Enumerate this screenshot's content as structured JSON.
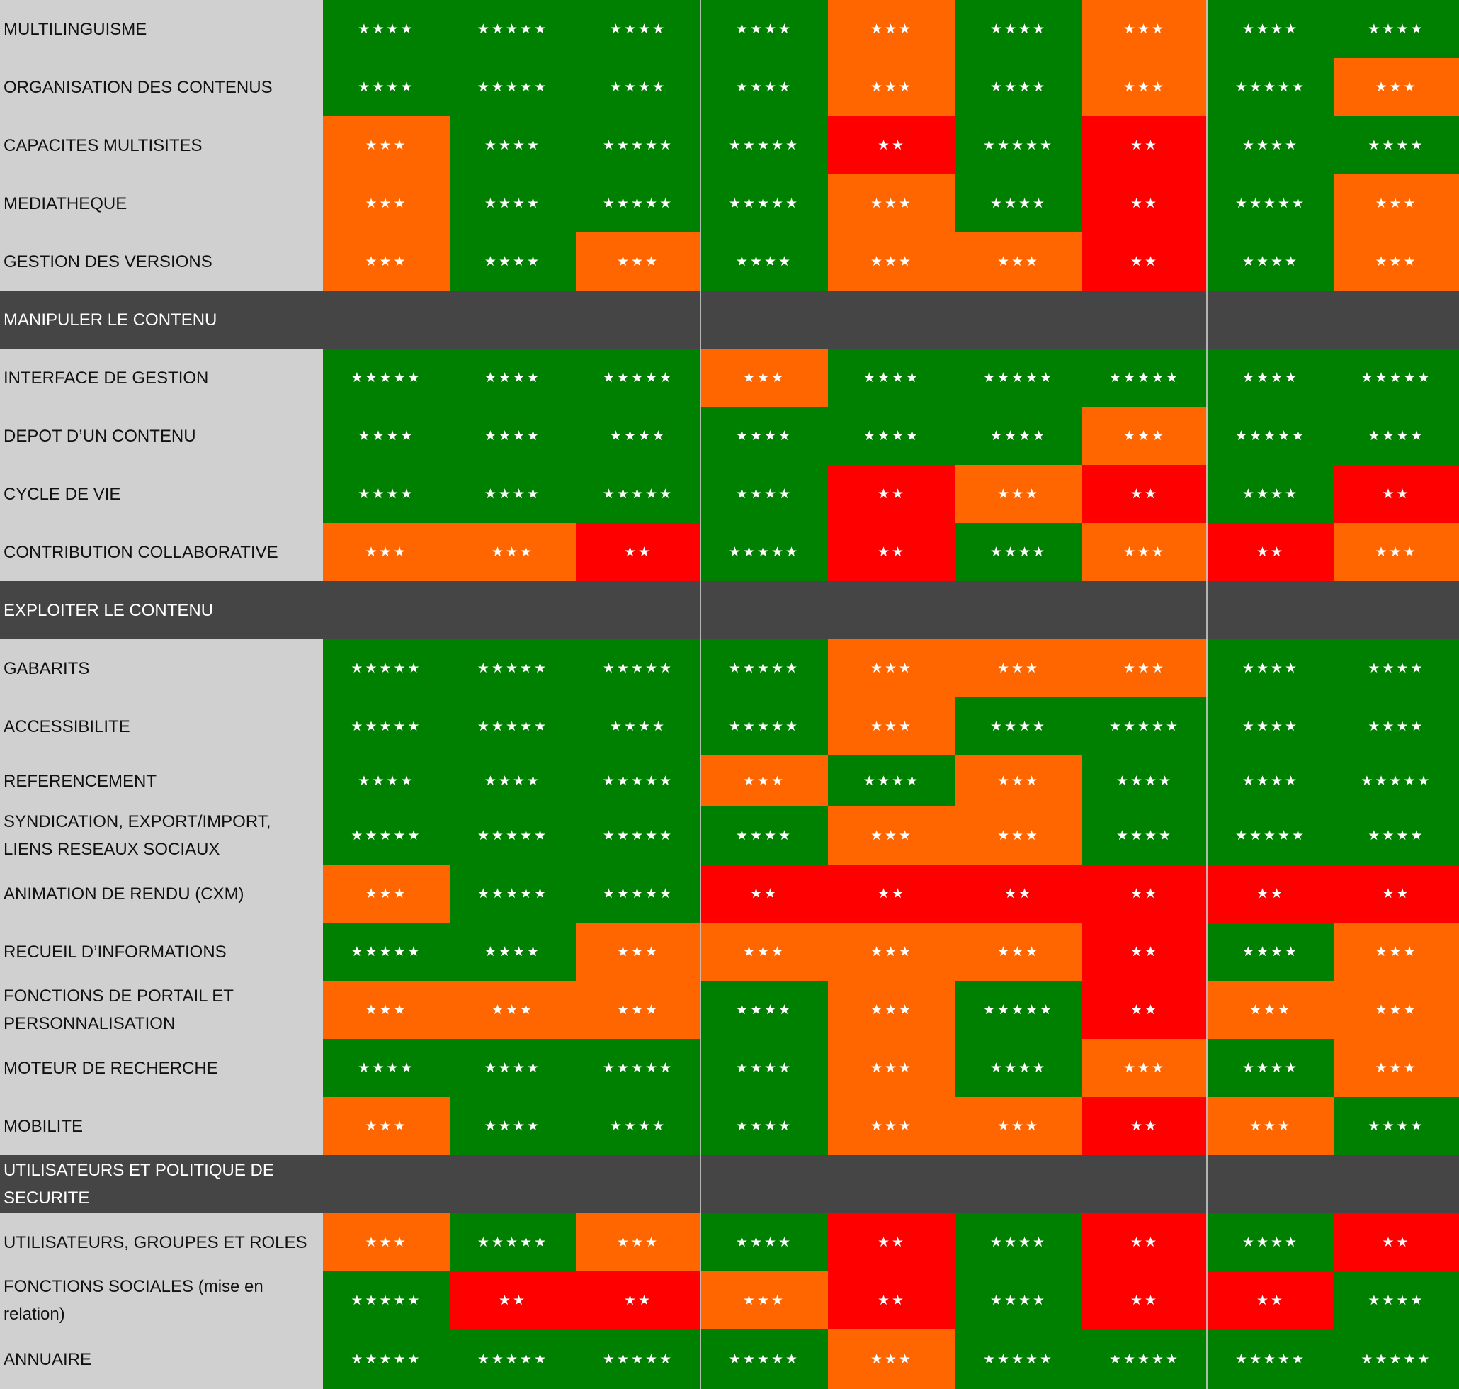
{
  "colors": {
    "high": "#008000",
    "medium": "#ff6600",
    "low": "#ff0000",
    "label_bg": "#d0d0d0",
    "section_bg": "#454545"
  },
  "rows": [
    {
      "type": "item",
      "label": "MULTILINGUISME",
      "ratings": [
        4,
        5,
        4,
        4,
        3,
        4,
        3,
        4,
        4
      ]
    },
    {
      "type": "item",
      "label": "ORGANISATION DES CONTENUS",
      "ratings": [
        4,
        5,
        4,
        4,
        3,
        4,
        3,
        5,
        3
      ]
    },
    {
      "type": "item",
      "label": "CAPACITES MULTISITES",
      "ratings": [
        3,
        4,
        5,
        5,
        2,
        5,
        2,
        4,
        4
      ]
    },
    {
      "type": "item",
      "label": "MEDIATHEQUE",
      "ratings": [
        3,
        4,
        5,
        5,
        3,
        4,
        2,
        5,
        3
      ]
    },
    {
      "type": "item",
      "label": "GESTION DES VERSIONS",
      "ratings": [
        3,
        4,
        3,
        4,
        3,
        3,
        2,
        4,
        3
      ]
    },
    {
      "type": "section",
      "label": "MANIPULER LE CONTENU"
    },
    {
      "type": "item",
      "label": "INTERFACE DE GESTION",
      "ratings": [
        5,
        4,
        5,
        3,
        4,
        5,
        5,
        4,
        5
      ]
    },
    {
      "type": "item",
      "label": "DEPOT D’UN CONTENU",
      "ratings": [
        4,
        4,
        4,
        4,
        4,
        4,
        3,
        5,
        4
      ]
    },
    {
      "type": "item",
      "label": "CYCLE DE VIE",
      "ratings": [
        4,
        4,
        5,
        4,
        2,
        3,
        2,
        4,
        2
      ]
    },
    {
      "type": "item",
      "label": "CONTRIBUTION COLLABORATIVE",
      "ratings": [
        3,
        3,
        2,
        5,
        2,
        4,
        3,
        2,
        3
      ]
    },
    {
      "type": "section",
      "label": "EXPLOITER LE CONTENU"
    },
    {
      "type": "item",
      "label": "GABARITS",
      "ratings": [
        5,
        5,
        5,
        5,
        3,
        3,
        3,
        4,
        4
      ]
    },
    {
      "type": "item",
      "label": "ACCESSIBILITE",
      "ratings": [
        5,
        5,
        4,
        5,
        3,
        4,
        5,
        4,
        4
      ]
    },
    {
      "type": "item",
      "label": "REFERENCEMENT",
      "ratings": [
        4,
        4,
        5,
        3,
        4,
        3,
        4,
        4,
        5
      ]
    },
    {
      "type": "item",
      "label": "SYNDICATION, EXPORT/IMPORT,\nLIENS RESEAUX SOCIAUX",
      "ratings": [
        5,
        5,
        5,
        4,
        3,
        3,
        4,
        5,
        4
      ]
    },
    {
      "type": "item",
      "label": "ANIMATION DE RENDU (CXM)",
      "ratings": [
        3,
        5,
        5,
        2,
        2,
        2,
        2,
        2,
        2
      ]
    },
    {
      "type": "item",
      "label": "RECUEIL D’INFORMATIONS",
      "ratings": [
        5,
        4,
        3,
        3,
        3,
        3,
        2,
        4,
        3
      ]
    },
    {
      "type": "item",
      "label": "FONCTIONS DE PORTAIL ET\nPERSONNALISATION",
      "ratings": [
        3,
        3,
        3,
        4,
        3,
        5,
        2,
        3,
        3
      ]
    },
    {
      "type": "item",
      "label": "MOTEUR DE RECHERCHE",
      "ratings": [
        4,
        4,
        5,
        4,
        3,
        4,
        3,
        4,
        3
      ]
    },
    {
      "type": "item",
      "label": "MOBILITE",
      "ratings": [
        3,
        4,
        4,
        4,
        3,
        3,
        2,
        3,
        4
      ]
    },
    {
      "type": "section",
      "label": "UTILISATEURS ET POLITIQUE DE\nSECURITE"
    },
    {
      "type": "item",
      "label": "UTILISATEURS, GROUPES ET ROLES",
      "ratings": [
        3,
        5,
        3,
        4,
        2,
        4,
        2,
        4,
        2
      ]
    },
    {
      "type": "item",
      "label": "FONCTIONS SOCIALES (mise en\nrelation)",
      "ratings": [
        5,
        2,
        2,
        3,
        2,
        4,
        2,
        2,
        4
      ]
    },
    {
      "type": "item",
      "label": "ANNUAIRE",
      "ratings": [
        5,
        5,
        5,
        5,
        3,
        5,
        5,
        5,
        5
      ]
    }
  ]
}
